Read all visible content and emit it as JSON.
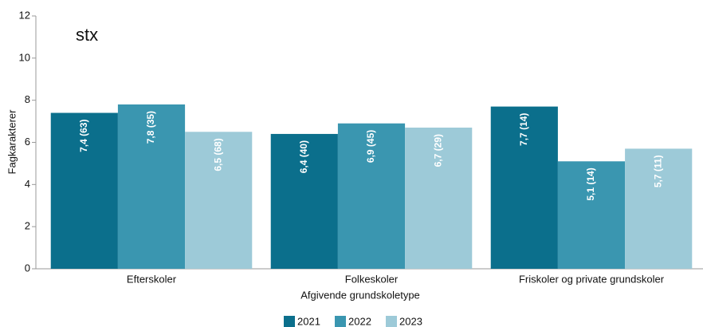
{
  "chart_data": {
    "type": "bar",
    "subtitle": "stx",
    "x_label": "Afgivende grundskoletype",
    "y_label": "Fagkarakterer",
    "categories": [
      "Efterskoler",
      "Folkeskoler",
      "Friskoler og private grundskoler"
    ],
    "series": [
      {
        "name": "2021",
        "color": "#0b6f8c",
        "values": [
          7.4,
          6.4,
          7.7
        ],
        "value_labels": [
          "7,4 (63)",
          "6,4 (40)",
          "7,7 (14)"
        ]
      },
      {
        "name": "2022",
        "color": "#3a96b0",
        "values": [
          7.8,
          6.9,
          5.1
        ],
        "value_labels": [
          "7,8 (35)",
          "6,9 (45)",
          "5,1 (14)"
        ]
      },
      {
        "name": "2023",
        "color": "#9dcad8",
        "values": [
          6.5,
          6.7,
          5.7
        ],
        "value_labels": [
          "6,5 (68)",
          "6,7 (29)",
          "5,7 (11)"
        ]
      }
    ],
    "ylim": [
      0,
      12
    ],
    "yticks": [
      0,
      2,
      4,
      6,
      8,
      10,
      12
    ],
    "grid": false,
    "legend": "bottom"
  }
}
